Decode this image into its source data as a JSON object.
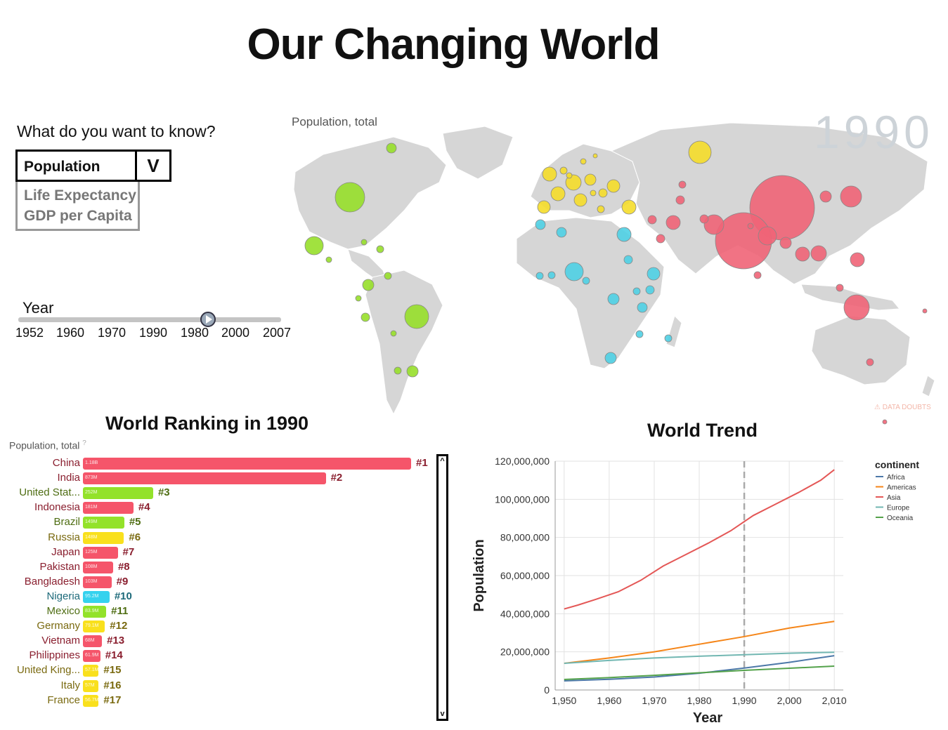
{
  "page": {
    "title": "Our Changing World"
  },
  "controls": {
    "question": "What do you want to know?",
    "dropdown": {
      "selected": "Population",
      "toggle_glyph": "V",
      "options": [
        "Life Expectancy",
        "GDP per Capita"
      ]
    },
    "year_slider": {
      "label": "Year",
      "ticks": [
        "1952",
        "1960",
        "1970",
        "1990",
        "1980",
        "2000",
        "2007"
      ]
    }
  },
  "map": {
    "indicator": "Population, total",
    "year": "1990",
    "data_doubts": "DATA DOUBTS",
    "colors": {
      "land": "#d6d6d6",
      "asia": "#f06477",
      "europe": "#f5dd2a",
      "africa": "#4fd0e4",
      "americas": "#97df2a"
    }
  },
  "ranking": {
    "title": "World Ranking in 1990",
    "indicator": "Population, total",
    "rows": [
      {
        "name": "China",
        "value": "1.18B",
        "rank": "#1",
        "fraction": 1.0,
        "color": "#f5556a",
        "text_color": "#8a1f2f"
      },
      {
        "name": "India",
        "value": "873M",
        "rank": "#2",
        "fraction": 0.74,
        "color": "#f5556a",
        "text_color": "#8a1f2f"
      },
      {
        "name": "United Stat...",
        "value": "252M",
        "rank": "#3",
        "fraction": 0.214,
        "color": "#93e22a",
        "text_color": "#4e6d12"
      },
      {
        "name": "Indonesia",
        "value": "181M",
        "rank": "#4",
        "fraction": 0.154,
        "color": "#f5556a",
        "text_color": "#8a1f2f"
      },
      {
        "name": "Brazil",
        "value": "149M",
        "rank": "#5",
        "fraction": 0.126,
        "color": "#93e22a",
        "text_color": "#4e6d12"
      },
      {
        "name": "Russia",
        "value": "148M",
        "rank": "#6",
        "fraction": 0.125,
        "color": "#f9e01d",
        "text_color": "#7a6a10"
      },
      {
        "name": "Japan",
        "value": "125M",
        "rank": "#7",
        "fraction": 0.106,
        "color": "#f5556a",
        "text_color": "#8a1f2f"
      },
      {
        "name": "Pakistan",
        "value": "108M",
        "rank": "#8",
        "fraction": 0.092,
        "color": "#f5556a",
        "text_color": "#8a1f2f"
      },
      {
        "name": "Bangladesh",
        "value": "103M",
        "rank": "#9",
        "fraction": 0.087,
        "color": "#f5556a",
        "text_color": "#8a1f2f"
      },
      {
        "name": "Nigeria",
        "value": "95.2M",
        "rank": "#10",
        "fraction": 0.081,
        "color": "#35d2ee",
        "text_color": "#1d6a7a"
      },
      {
        "name": "Mexico",
        "value": "83.9M",
        "rank": "#11",
        "fraction": 0.071,
        "color": "#93e22a",
        "text_color": "#4e6d12"
      },
      {
        "name": "Germany",
        "value": "79.1M",
        "rank": "#12",
        "fraction": 0.067,
        "color": "#f9e01d",
        "text_color": "#7a6a10"
      },
      {
        "name": "Vietnam",
        "value": "68M",
        "rank": "#13",
        "fraction": 0.058,
        "color": "#f5556a",
        "text_color": "#8a1f2f"
      },
      {
        "name": "Philippines",
        "value": "61.9M",
        "rank": "#14",
        "fraction": 0.053,
        "color": "#f5556a",
        "text_color": "#8a1f2f"
      },
      {
        "name": "United King...",
        "value": "57.1M",
        "rank": "#15",
        "fraction": 0.048,
        "color": "#f9e01d",
        "text_color": "#7a6a10"
      },
      {
        "name": "Italy",
        "value": "57M",
        "rank": "#16",
        "fraction": 0.048,
        "color": "#f9e01d",
        "text_color": "#7a6a10"
      },
      {
        "name": "France",
        "value": "56.7M",
        "rank": "#17",
        "fraction": 0.048,
        "color": "#f9e01d",
        "text_color": "#7a6a10"
      }
    ],
    "scroll": {
      "up": "^",
      "down": "v"
    }
  },
  "trend": {
    "title": "World Trend"
  },
  "chart_data": {
    "type": "line",
    "xlabel": "Year",
    "ylabel": "Population",
    "xlim": [
      1948,
      2012
    ],
    "ylim": [
      0,
      120000000
    ],
    "x_ticks": [
      "1,950",
      "1,960",
      "1,970",
      "1,980",
      "1,990",
      "2,000",
      "2,010"
    ],
    "x_tick_values": [
      1950,
      1960,
      1970,
      1980,
      1990,
      2000,
      2010
    ],
    "y_ticks": [
      "0",
      "20,000,000",
      "40,000,000",
      "60,000,000",
      "80,000,000",
      "100,000,000",
      "120,000,000"
    ],
    "y_tick_values": [
      0,
      20000000,
      40000000,
      60000000,
      80000000,
      100000000,
      120000000
    ],
    "marker_year": 1990,
    "grid": true,
    "legend_title": "continent",
    "legend_position": "top-right",
    "series": [
      {
        "name": "Africa",
        "color": "#4c78a8",
        "x": [
          1950,
          1960,
          1970,
          1980,
          1990,
          2000,
          2010
        ],
        "y": [
          4800000,
          5600000,
          6800000,
          8800000,
          11500000,
          14500000,
          18000000
        ]
      },
      {
        "name": "Americas",
        "color": "#f58518",
        "x": [
          1950,
          1960,
          1970,
          1980,
          1990,
          2000,
          2010
        ],
        "y": [
          14000000,
          16800000,
          20000000,
          24000000,
          28000000,
          32500000,
          36000000
        ]
      },
      {
        "name": "Asia",
        "color": "#e45756",
        "x": [
          1950,
          1953,
          1957,
          1962,
          1967,
          1972,
          1977,
          1982,
          1987,
          1992,
          1997,
          2002,
          2007,
          2010
        ],
        "y": [
          42500000,
          44500000,
          47500000,
          51500000,
          57500000,
          65000000,
          71000000,
          77000000,
          83500000,
          91500000,
          97500000,
          103500000,
          110000000,
          115500000
        ]
      },
      {
        "name": "Europe",
        "color": "#72b7b2",
        "x": [
          1950,
          1960,
          1970,
          1980,
          1990,
          2000,
          2010
        ],
        "y": [
          14000000,
          15500000,
          16800000,
          17700000,
          18500000,
          19300000,
          19800000
        ]
      },
      {
        "name": "Oceania",
        "color": "#54a24b",
        "x": [
          1950,
          1960,
          1970,
          1980,
          1990,
          2000,
          2010
        ],
        "y": [
          5500000,
          6500000,
          7700000,
          9000000,
          10300000,
          11400000,
          12500000
        ]
      }
    ]
  }
}
